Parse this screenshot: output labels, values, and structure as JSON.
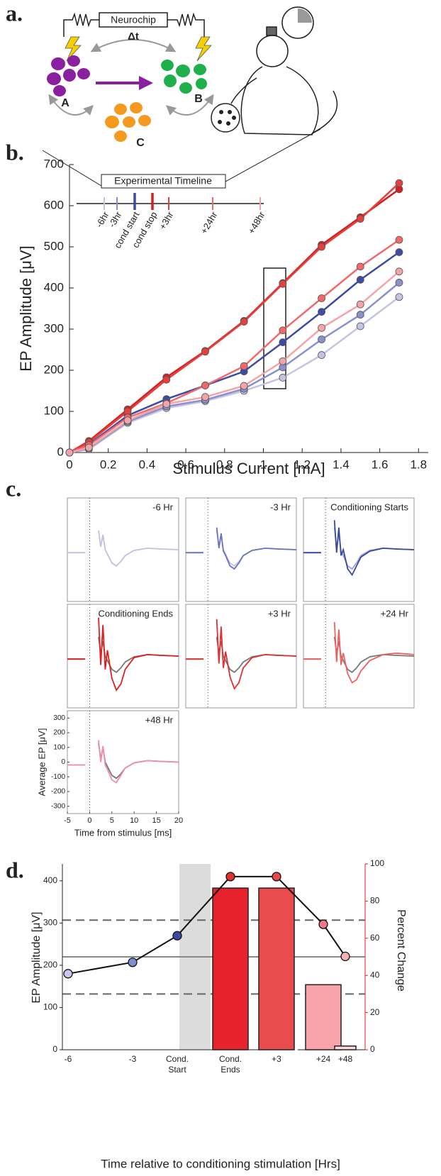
{
  "panels": {
    "letters": [
      "a.",
      "b.",
      "c.",
      "d."
    ]
  },
  "diagram": {
    "chip": "Neurochip",
    "delay": "Δt",
    "nodes": [
      "A",
      "B",
      "C"
    ]
  },
  "chart_data": [
    {
      "type": "line",
      "xlabel": "Stimulus Current [mA]",
      "ylabel": "EP Amplitude [μV]",
      "legend_title": "Experimental Timeline",
      "x": [
        0,
        0.1,
        0.3,
        0.5,
        0.7,
        0.9,
        1.1,
        1.3,
        1.5,
        1.7
      ],
      "xlim": [
        0,
        1.85
      ],
      "xticks": [
        0,
        0.2,
        0.4,
        0.6,
        0.8,
        1,
        1.2,
        1.4,
        1.6,
        1.8
      ],
      "ylim": [
        0,
        700
      ],
      "yticks": [
        0,
        100,
        200,
        300,
        400,
        500,
        600,
        700
      ],
      "series": [
        {
          "name": "-6hr",
          "color": "#c4c4e2",
          "values": [
            0,
            8,
            72,
            108,
            125,
            150,
            182,
            237,
            307,
            378
          ]
        },
        {
          "name": "-3hr",
          "color": "#8a90cc",
          "values": [
            0,
            10,
            75,
            112,
            128,
            155,
            207,
            275,
            335,
            413
          ]
        },
        {
          "name": "cond start",
          "color": "#3d4ba3",
          "values": [
            0,
            20,
            90,
            130,
            163,
            197,
            268,
            342,
            420,
            487
          ]
        },
        {
          "name": "cond stop",
          "color": "#d42020",
          "values": [
            0,
            28,
            105,
            183,
            247,
            320,
            412,
            505,
            572,
            640
          ]
        },
        {
          "name": "+3hr",
          "color": "#e44040",
          "values": [
            0,
            25,
            100,
            177,
            245,
            318,
            410,
            500,
            568,
            655
          ]
        },
        {
          "name": "+24hr",
          "color": "#f06a6a",
          "values": [
            0,
            18,
            85,
            120,
            163,
            210,
            297,
            375,
            452,
            517
          ]
        },
        {
          "name": "+48hr",
          "color": "#f4a4a8",
          "values": [
            0,
            12,
            78,
            118,
            135,
            162,
            222,
            303,
            360,
            440
          ]
        }
      ]
    },
    {
      "type": "waveforms",
      "xlabel": "Time from stimulus [ms]",
      "ylabel": "Average EP  [μV]",
      "x": [
        -5,
        -1,
        0.5,
        2,
        2.5,
        3,
        3.5,
        4,
        5,
        6,
        7,
        8,
        10,
        13,
        16,
        20
      ],
      "xlim": [
        -5,
        20
      ],
      "xticks": [
        -5,
        0,
        5,
        10,
        15,
        20
      ],
      "ylim": [
        -350,
        350
      ],
      "yticks": [
        -300,
        -200,
        -100,
        0,
        100,
        200,
        300
      ],
      "panels": [
        {
          "title": "-6 Hr",
          "series": [
            {
              "color": "#c0c0e0",
              "values": [
                -20,
                -20,
                null,
                130,
                20,
                100,
                0,
                -30,
                -90,
                -110,
                -80,
                -40,
                -5,
                10,
                5,
                0
              ]
            }
          ]
        },
        {
          "title": "-3 Hr",
          "series": [
            {
              "color": "#c0c0e0",
              "values": [
                -20,
                -20,
                null,
                130,
                20,
                100,
                0,
                -30,
                -90,
                -110,
                -80,
                -40,
                -5,
                10,
                5,
                0
              ]
            },
            {
              "color": "#6a72c2",
              "values": [
                -20,
                -20,
                null,
                150,
                10,
                110,
                -10,
                -40,
                -110,
                -130,
                -90,
                -40,
                -5,
                10,
                5,
                0
              ]
            }
          ]
        },
        {
          "title": "Conditioning Starts",
          "series": [
            {
              "color": "#9aa0d8",
              "values": [
                -20,
                -20,
                null,
                150,
                10,
                110,
                -10,
                -40,
                -110,
                -130,
                -90,
                -40,
                -5,
                10,
                5,
                0
              ]
            },
            {
              "color": "#3a48a0",
              "values": [
                -20,
                -20,
                null,
                200,
                -20,
                150,
                -40,
                0,
                -130,
                -170,
                -110,
                -50,
                -10,
                10,
                5,
                0
              ]
            }
          ]
        },
        {
          "title": "Conditioning Ends",
          "series": [
            {
              "color": "#777777",
              "values": [
                -20,
                -20,
                null,
                130,
                20,
                100,
                0,
                -30,
                -90,
                -110,
                -80,
                -40,
                -5,
                10,
                5,
                0
              ]
            },
            {
              "color": "#e02020",
              "values": [
                -20,
                -20,
                null,
                260,
                -60,
                210,
                -90,
                40,
                -150,
                -230,
                -190,
                -90,
                -10,
                10,
                5,
                0
              ]
            }
          ]
        },
        {
          "title": "+3 Hr",
          "series": [
            {
              "color": "#777777",
              "values": [
                -20,
                -20,
                null,
                130,
                20,
                100,
                0,
                -30,
                -90,
                -110,
                -80,
                -40,
                -5,
                10,
                5,
                0
              ]
            },
            {
              "color": "#e03030",
              "values": [
                -20,
                -20,
                null,
                250,
                -50,
                200,
                -80,
                30,
                -140,
                -220,
                -180,
                -80,
                -10,
                10,
                5,
                0
              ]
            }
          ]
        },
        {
          "title": "+24 Hr",
          "series": [
            {
              "color": "#777777",
              "values": [
                -20,
                -20,
                null,
                130,
                20,
                100,
                0,
                -30,
                -90,
                -110,
                -80,
                -40,
                -5,
                10,
                5,
                0
              ]
            },
            {
              "color": "#f06060",
              "values": [
                -20,
                -20,
                null,
                230,
                -40,
                180,
                -60,
                20,
                -120,
                -180,
                -160,
                -100,
                -30,
                10,
                20,
                10
              ]
            }
          ]
        },
        {
          "title": "+48 Hr",
          "series": [
            {
              "color": "#777777",
              "values": [
                -20,
                -20,
                null,
                130,
                20,
                100,
                0,
                -30,
                -90,
                -110,
                -80,
                -40,
                -5,
                10,
                5,
                0
              ]
            },
            {
              "color": "#f090a8",
              "values": [
                -20,
                -20,
                null,
                150,
                0,
                110,
                -20,
                -50,
                -120,
                -140,
                -90,
                -40,
                -5,
                10,
                5,
                0
              ]
            }
          ]
        }
      ]
    },
    {
      "type": "combo",
      "xlabel": "Time relative to conditioning stimulation [Hrs]",
      "ylabel": "EP Amplitude  [μV]",
      "y2label": "Percent Change",
      "categories": [
        "-6",
        "-3",
        "Cond. Start",
        "Cond. Ends",
        "+3",
        "+24",
        "+48"
      ],
      "ylim": [
        0,
        440
      ],
      "yticks": [
        0,
        100,
        200,
        300,
        400
      ],
      "y2lim": [
        0,
        100
      ],
      "y2ticks": [
        0,
        20,
        40,
        60,
        80,
        100
      ],
      "hlines": [
        {
          "value": 220,
          "dashed": false
        },
        {
          "value": 307,
          "dashed": true
        },
        {
          "value": 132,
          "dashed": true
        }
      ],
      "series": [
        {
          "type": "bar",
          "axis": "y2",
          "colors": [
            null,
            null,
            null,
            "#e8222c",
            "#e84c4c",
            "#f8a2aa",
            "#fcd8dc"
          ],
          "values": [
            null,
            null,
            null,
            87,
            87,
            35,
            2
          ]
        },
        {
          "type": "line",
          "color": "#111111",
          "point_colors": [
            "#c8c8ee",
            "#7d8fd0",
            "#3a4aa0",
            "#e03030",
            "#e84848",
            "#f07888",
            "#f8b0b8"
          ],
          "values": [
            180,
            207,
            270,
            410,
            410,
            297,
            221
          ]
        }
      ]
    }
  ]
}
